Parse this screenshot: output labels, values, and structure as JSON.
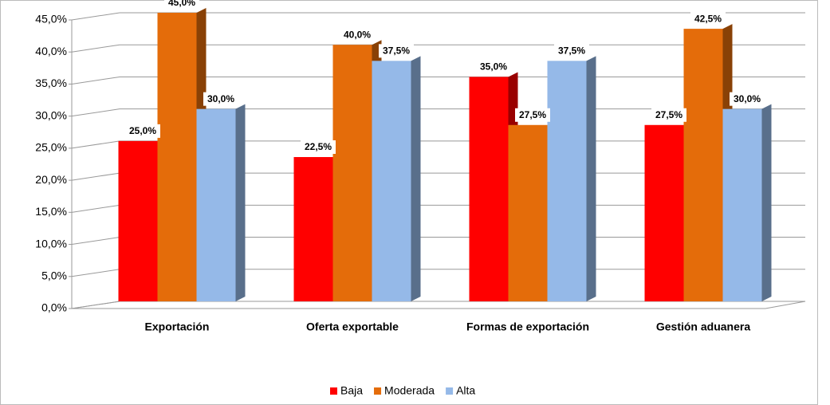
{
  "chart_data": {
    "type": "bar",
    "categories": [
      "Exportación",
      "Oferta exportable",
      "Formas de exportación",
      "Gestión aduanera"
    ],
    "series": [
      {
        "name": "Baja",
        "color": "#ff0000",
        "values": [
          25,
          22.5,
          35,
          27.5
        ],
        "value_labels": [
          "25,0%",
          "22,5%",
          "35,0%",
          "27,5%"
        ]
      },
      {
        "name": "Moderada",
        "color": "#e46c0a",
        "values": [
          45,
          40,
          27.5,
          42.5
        ],
        "value_labels": [
          "45,0%",
          "40,0%",
          "27,5%",
          "42,5%"
        ]
      },
      {
        "name": "Alta",
        "color": "#95b9e8",
        "values": [
          30,
          37.5,
          37.5,
          30
        ],
        "value_labels": [
          "30,0%",
          "37,5%",
          "37,5%",
          "30,0%"
        ]
      }
    ],
    "ylim": [
      0,
      45
    ],
    "yticks": [
      {
        "value": 0,
        "label": "0,0%"
      },
      {
        "value": 5,
        "label": "5,0%"
      },
      {
        "value": 10,
        "label": "10,0%"
      },
      {
        "value": 15,
        "label": "15,0%"
      },
      {
        "value": 20,
        "label": "20,0%"
      },
      {
        "value": 25,
        "label": "25,0%"
      },
      {
        "value": 30,
        "label": "30,0%"
      },
      {
        "value": 35,
        "label": "35,0%"
      },
      {
        "value": 40,
        "label": "40,0%"
      },
      {
        "value": 45,
        "label": "45,0%"
      }
    ],
    "grid": true,
    "legend": "bottom"
  }
}
